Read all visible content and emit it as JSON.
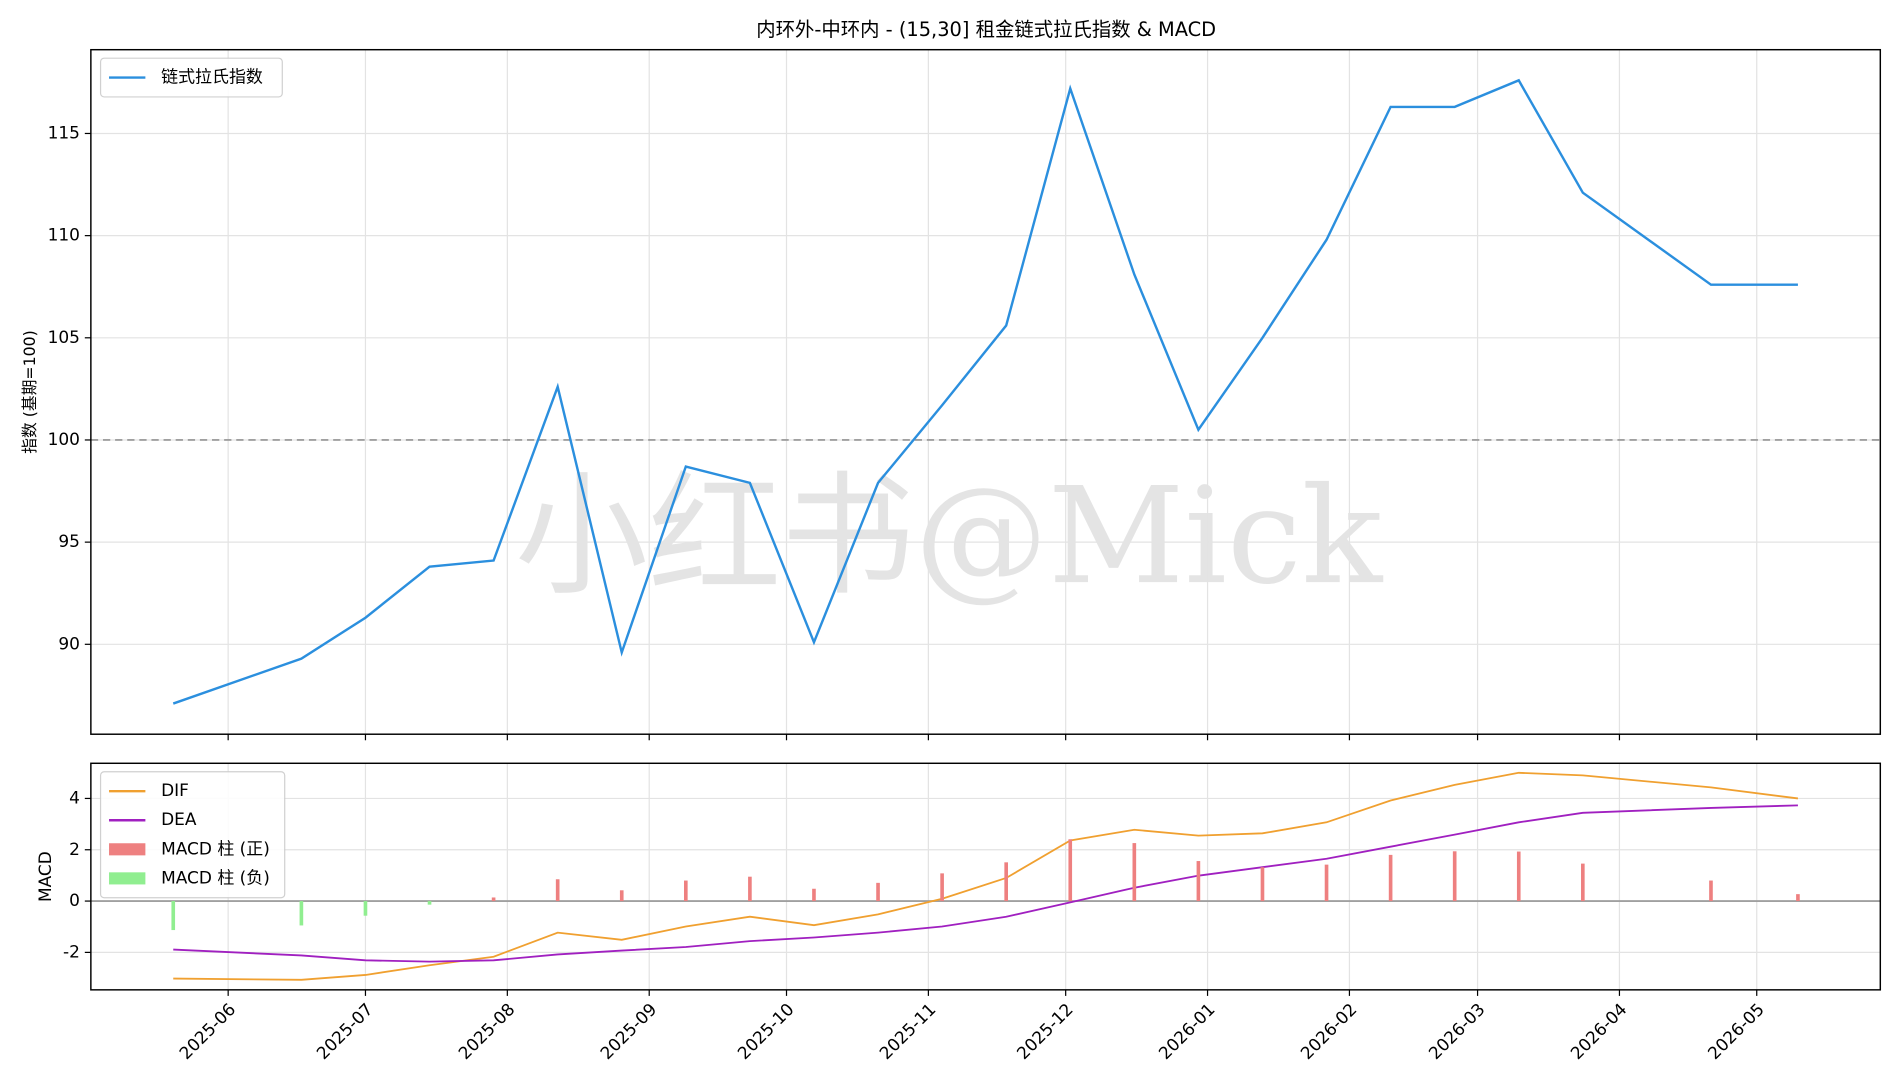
{
  "chart_data": [
    {
      "type": "line",
      "title": "内环外-中环内 - (15,30]  租金链式拉氏指数 & MACD",
      "watermark": "小红书@Mick",
      "ylabel": "指数 (基期=100)",
      "x": [
        "2025-05-20",
        "2025-06-17",
        "2025-07-01",
        "2025-07-15",
        "2025-07-29",
        "2025-08-12",
        "2025-08-26",
        "2025-09-09",
        "2025-09-23",
        "2025-10-07",
        "2025-10-21",
        "2025-11-04",
        "2025-11-18",
        "2025-12-02",
        "2025-12-16",
        "2025-12-30",
        "2026-01-13",
        "2026-01-27",
        "2026-02-10",
        "2026-02-24",
        "2026-03-10",
        "2026-03-24",
        "2026-04-21",
        "2026-05-10"
      ],
      "series": [
        {
          "name": "链式拉氏指数",
          "color": "#2b8fde",
          "values": [
            87.1,
            89.3,
            91.3,
            93.8,
            94.1,
            102.6,
            89.6,
            98.7,
            97.9,
            90.1,
            97.9,
            101.7,
            105.6,
            117.2,
            108.1,
            100.5,
            105.0,
            109.8,
            116.3,
            116.3,
            117.6,
            112.1,
            107.6,
            107.6
          ]
        }
      ],
      "hline": 100,
      "xlim": [
        "2025-05-02",
        "2026-05-28"
      ],
      "ylim": [
        85.6,
        119.1
      ],
      "yticks": [
        90,
        95,
        100,
        105,
        110,
        115
      ],
      "grid": true,
      "legend": "upper left"
    },
    {
      "type": "combo",
      "ylabel": "MACD",
      "x": [
        "2025-05-20",
        "2025-06-17",
        "2025-07-01",
        "2025-07-15",
        "2025-07-29",
        "2025-08-12",
        "2025-08-26",
        "2025-09-09",
        "2025-09-23",
        "2025-10-07",
        "2025-10-21",
        "2025-11-04",
        "2025-11-18",
        "2025-12-02",
        "2025-12-16",
        "2025-12-30",
        "2026-01-13",
        "2026-01-27",
        "2026-02-10",
        "2026-02-24",
        "2026-03-10",
        "2026-03-24",
        "2026-04-21",
        "2026-05-10"
      ],
      "series": [
        {
          "name": "DIF",
          "kind": "line",
          "color": "#f0a030",
          "values": [
            -3.02,
            -3.07,
            -2.88,
            -2.5,
            -2.17,
            -1.23,
            -1.51,
            -0.99,
            -0.61,
            -0.94,
            -0.52,
            0.09,
            0.9,
            2.36,
            2.78,
            2.55,
            2.64,
            3.07,
            3.92,
            4.53,
            5.0,
            4.9,
            4.43,
            4.0
          ]
        },
        {
          "name": "DEA",
          "kind": "line",
          "color": "#a020c0",
          "values": [
            -1.89,
            -2.12,
            -2.31,
            -2.36,
            -2.31,
            -2.08,
            -1.93,
            -1.79,
            -1.56,
            -1.42,
            -1.23,
            -0.99,
            -0.61,
            -0.05,
            0.52,
            0.99,
            1.32,
            1.65,
            2.12,
            2.59,
            3.07,
            3.44,
            3.63,
            3.73
          ]
        },
        {
          "name": "MACD 柱 (正)",
          "kind": "bar",
          "color": "#ee8080",
          "values": [
            null,
            null,
            null,
            null,
            0.14,
            0.85,
            0.42,
            0.8,
            0.95,
            0.48,
            0.71,
            1.08,
            1.51,
            2.41,
            2.26,
            1.56,
            1.32,
            1.42,
            1.8,
            1.94,
            1.93,
            1.46,
            0.8,
            0.27
          ]
        },
        {
          "name": "MACD 柱 (负)",
          "kind": "bar",
          "color": "#90ee90",
          "values": [
            -1.13,
            -0.95,
            -0.57,
            -0.14,
            null,
            null,
            null,
            null,
            null,
            null,
            null,
            null,
            null,
            null,
            null,
            null,
            null,
            null,
            null,
            null,
            null,
            null,
            null,
            null
          ]
        }
      ],
      "hline": 0,
      "xlim": [
        "2025-05-02",
        "2026-05-28"
      ],
      "ylim": [
        -3.46,
        5.37
      ],
      "yticks": [
        -2,
        0,
        2,
        4
      ],
      "xticks": [
        {
          "value": "2025-06-01",
          "label": "2025-06"
        },
        {
          "value": "2025-07-01",
          "label": "2025-07"
        },
        {
          "value": "2025-08-01",
          "label": "2025-08"
        },
        {
          "value": "2025-09-01",
          "label": "2025-09"
        },
        {
          "value": "2025-10-01",
          "label": "2025-10"
        },
        {
          "value": "2025-11-01",
          "label": "2025-11"
        },
        {
          "value": "2025-12-01",
          "label": "2025-12"
        },
        {
          "value": "2026-01-01",
          "label": "2026-01"
        },
        {
          "value": "2026-02-01",
          "label": "2026-02"
        },
        {
          "value": "2026-03-01",
          "label": "2026-03"
        },
        {
          "value": "2026-04-01",
          "label": "2026-04"
        },
        {
          "value": "2026-05-01",
          "label": "2026-05"
        }
      ],
      "grid": true,
      "legend": "upper left"
    }
  ]
}
